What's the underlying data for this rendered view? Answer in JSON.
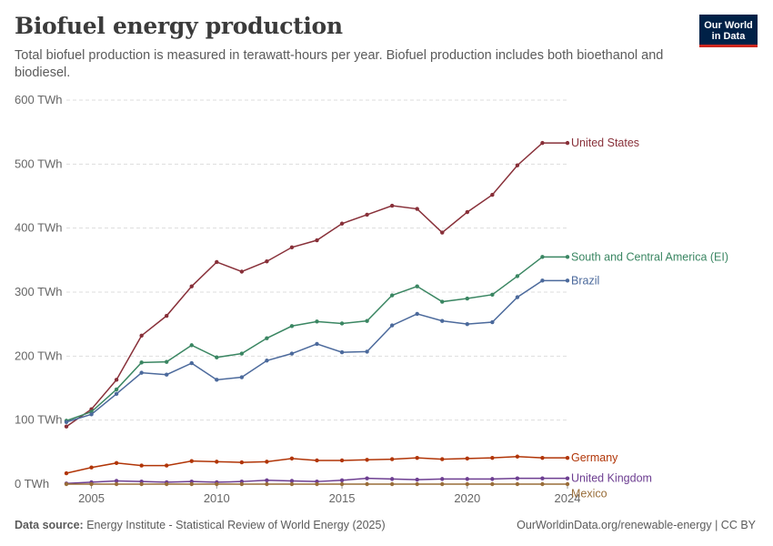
{
  "header": {
    "title": "Biofuel energy production",
    "subtitle": "Total biofuel production is measured in terawatt-hours per year. Biofuel production includes both bioethanol and biodiesel.",
    "logo_line1": "Our World",
    "logo_line2": "in Data"
  },
  "footer": {
    "source_label": "Data source:",
    "source_text": "Energy Institute - Statistical Review of World Energy (2025)",
    "url_license": "OurWorldinData.org/renewable-energy | CC BY"
  },
  "colors": {
    "brand_navy": "#002147",
    "brand_red": "#ce261e"
  },
  "chart_data": {
    "type": "line",
    "x": [
      2004,
      2005,
      2006,
      2007,
      2008,
      2009,
      2010,
      2011,
      2012,
      2013,
      2014,
      2015,
      2016,
      2017,
      2018,
      2019,
      2020,
      2021,
      2022,
      2023,
      2024
    ],
    "ylim": [
      0,
      600
    ],
    "xlim": [
      2004,
      2024
    ],
    "y_ticks": [
      0,
      100,
      200,
      300,
      400,
      500,
      600
    ],
    "y_tick_labels": [
      "0 TWh",
      "100 TWh",
      "200 TWh",
      "300 TWh",
      "400 TWh",
      "500 TWh",
      "600 TWh"
    ],
    "x_ticks": [
      2005,
      2010,
      2015,
      2020,
      2024
    ],
    "x_tick_labels": [
      "2005",
      "2010",
      "2015",
      "2020",
      "2024"
    ],
    "grid": "horizontal dashed",
    "legend": "line-end labels on the right",
    "series": [
      {
        "name": "United States",
        "color": "#883039",
        "values": [
          90,
          117,
          163,
          232,
          263,
          309,
          347,
          332,
          348,
          370,
          381,
          407,
          421,
          435,
          430,
          393,
          425,
          452,
          498,
          533,
          533
        ]
      },
      {
        "name": "South and Central America (EI)",
        "color": "#3a8662",
        "values": [
          99,
          113,
          148,
          190,
          191,
          217,
          198,
          204,
          228,
          247,
          254,
          251,
          255,
          295,
          309,
          285,
          290,
          296,
          325,
          355,
          355
        ]
      },
      {
        "name": "Brazil",
        "color": "#4c6a9c",
        "values": [
          97,
          109,
          141,
          174,
          171,
          189,
          163,
          167,
          193,
          204,
          219,
          206,
          207,
          248,
          266,
          255,
          250,
          253,
          292,
          318,
          318
        ]
      },
      {
        "name": "Germany",
        "color": "#b13507",
        "values": [
          17,
          26,
          33,
          29,
          29,
          36,
          35,
          34,
          35,
          40,
          37,
          37,
          38,
          39,
          41,
          39,
          40,
          41,
          43,
          41,
          41
        ]
      },
      {
        "name": "United Kingdom",
        "color": "#6d3e91",
        "values": [
          1,
          3,
          5,
          4,
          3,
          4,
          3,
          4,
          6,
          5,
          4,
          6,
          9,
          8,
          7,
          8,
          8,
          8,
          9,
          9,
          9
        ]
      },
      {
        "name": "Mexico",
        "color": "#996d39",
        "values": [
          0,
          0,
          0,
          0,
          0,
          0,
          0,
          0,
          0,
          0,
          0,
          0,
          0,
          0,
          0,
          0,
          0,
          0,
          0,
          0,
          0
        ]
      }
    ]
  }
}
